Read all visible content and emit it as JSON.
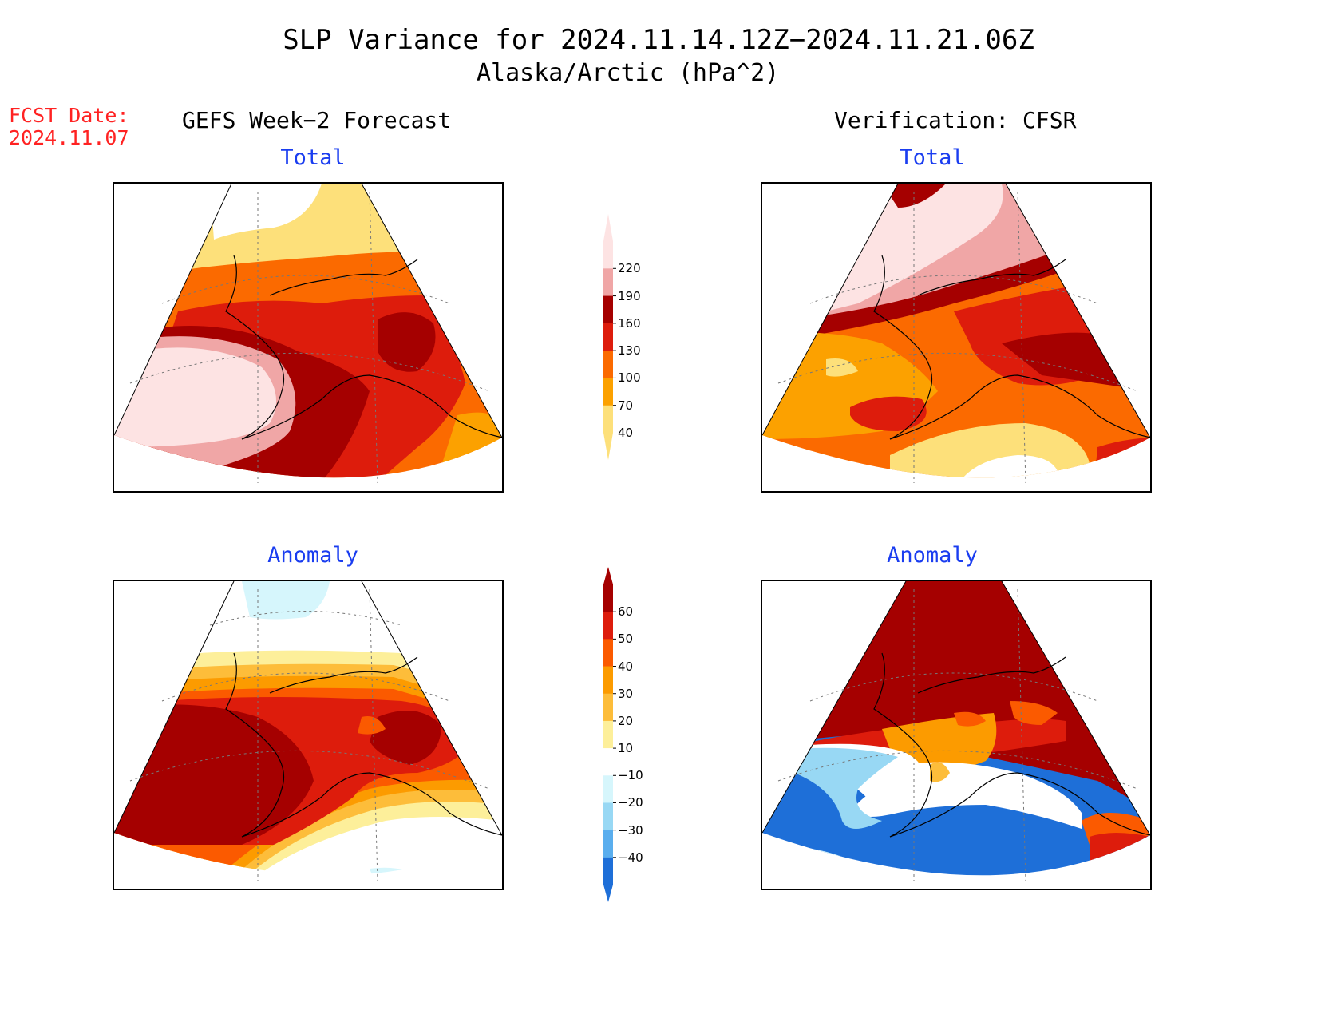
{
  "title": "SLP Variance for 2024.11.14.12Z−2024.11.21.06Z",
  "subtitle": "Alaska/Arctic (hPa^2)",
  "fcst_date": {
    "label": "FCST Date:",
    "value": "2024.11.07"
  },
  "columns": {
    "left": "GEFS Week−2 Forecast",
    "right": "Verification: CFSR"
  },
  "panels": {
    "top_left": "Total",
    "top_right": "Total",
    "bottom_left": "Anomaly",
    "bottom_right": "Anomaly"
  },
  "total_colorbar": {
    "labels": [
      "220",
      "190",
      "160",
      "130",
      "100",
      "70",
      "40"
    ],
    "colors": [
      "#fde3e3",
      "#f0a6a6",
      "#a50000",
      "#dd1c0c",
      "#fb6a00",
      "#fca100",
      "#fde07a"
    ]
  },
  "anomaly_colorbar": {
    "labels": [
      "60",
      "50",
      "40",
      "30",
      "20",
      "10",
      "−10",
      "−20",
      "−30",
      "−40"
    ],
    "colors": [
      "#a50000",
      "#dd1c0c",
      "#fb5a00",
      "#fc9b00",
      "#fdbd3a",
      "#fdef9a",
      "#ffffff",
      "#d6f6fc",
      "#98d8f4",
      "#5aaeee",
      "#1e6fd8"
    ]
  }
}
